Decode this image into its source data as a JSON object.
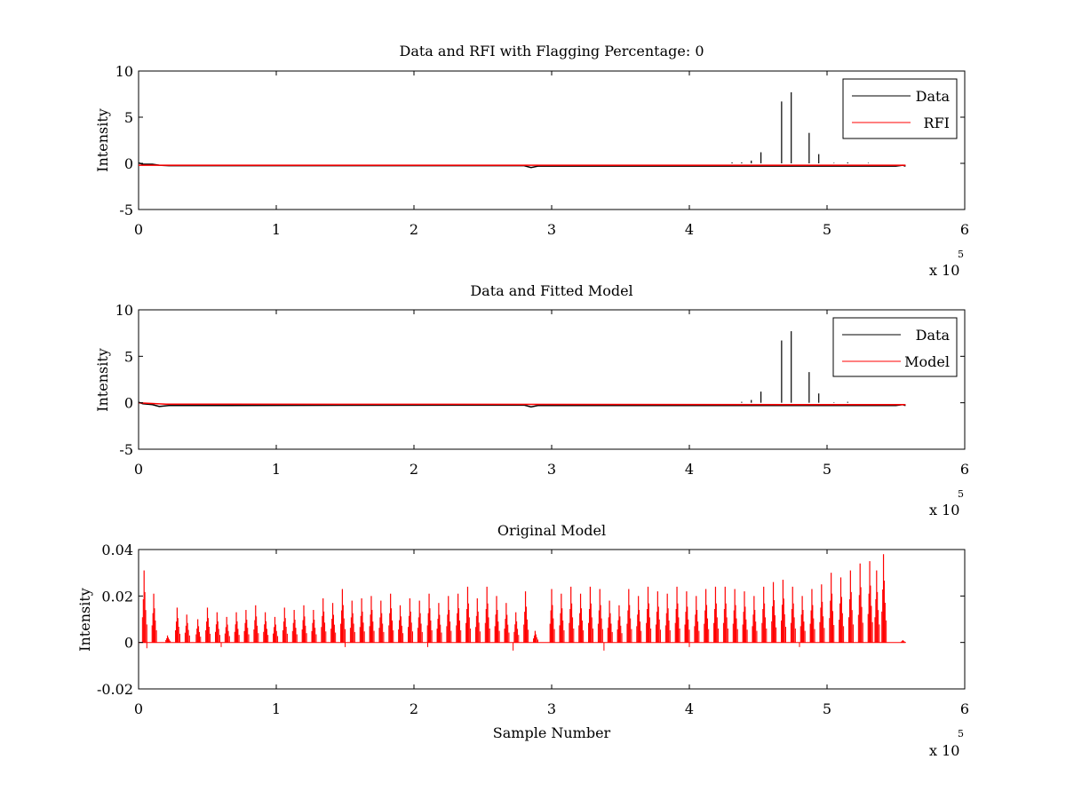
{
  "chart_data": [
    {
      "type": "line",
      "title": "Data and RFI with Flagging Percentage: 0",
      "xlabel": "",
      "ylabel": "Intensity",
      "xlim": [
        0,
        6
      ],
      "ylim": [
        -5,
        10
      ],
      "x_ticks": [
        "0",
        "1",
        "2",
        "3",
        "4",
        "5",
        "6"
      ],
      "y_ticks": [
        "-5",
        "0",
        "5",
        "10"
      ],
      "x_multiplier": "x 10",
      "x_multiplier_exp": "5",
      "legend": {
        "position": "top-right",
        "entries": [
          {
            "label": "Data",
            "color": "#000000"
          },
          {
            "label": "RFI",
            "color": "#ff0000"
          }
        ]
      },
      "series": [
        {
          "name": "Data",
          "color": "#000000",
          "baseline": [
            [
              0.0,
              0.05
            ],
            [
              0.03,
              -0.1
            ],
            [
              0.1,
              -0.1
            ],
            [
              0.15,
              -0.2
            ],
            [
              0.22,
              -0.25
            ],
            [
              2.8,
              -0.25
            ],
            [
              2.85,
              -0.45
            ],
            [
              2.9,
              -0.3
            ],
            [
              5.5,
              -0.3
            ],
            [
              5.55,
              -0.2
            ],
            [
              5.57,
              -0.3
            ]
          ],
          "spikes": [
            [
              4.52,
              1.2
            ],
            [
              4.67,
              6.7
            ],
            [
              4.74,
              7.7
            ],
            [
              4.87,
              3.3
            ],
            [
              4.94,
              1.0
            ],
            [
              4.45,
              0.3
            ],
            [
              4.38,
              0.1
            ],
            [
              4.31,
              0.1
            ],
            [
              5.05,
              0.05
            ],
            [
              5.15,
              0.1
            ],
            [
              5.3,
              0.05
            ]
          ]
        },
        {
          "name": "RFI",
          "color": "#ff0000",
          "baseline": [
            [
              0.0,
              -0.2
            ],
            [
              5.57,
              -0.2
            ]
          ],
          "spikes": []
        }
      ]
    },
    {
      "type": "line",
      "title": "Data and Fitted Model",
      "xlabel": "",
      "ylabel": "Intensity",
      "xlim": [
        0,
        6
      ],
      "ylim": [
        -5,
        10
      ],
      "x_ticks": [
        "0",
        "1",
        "2",
        "3",
        "4",
        "5",
        "6"
      ],
      "y_ticks": [
        "-5",
        "0",
        "5",
        "10"
      ],
      "x_multiplier": "x 10",
      "x_multiplier_exp": "5",
      "legend": {
        "position": "top-right",
        "entries": [
          {
            "label": "Data",
            "color": "#000000"
          },
          {
            "label": "Model",
            "color": "#ff0000"
          }
        ]
      },
      "series": [
        {
          "name": "Data",
          "color": "#000000",
          "baseline": [
            [
              0.0,
              0.05
            ],
            [
              0.03,
              -0.1
            ],
            [
              0.1,
              -0.2
            ],
            [
              0.15,
              -0.4
            ],
            [
              0.22,
              -0.3
            ],
            [
              2.8,
              -0.25
            ],
            [
              2.85,
              -0.45
            ],
            [
              2.9,
              -0.3
            ],
            [
              5.5,
              -0.3
            ],
            [
              5.55,
              -0.2
            ],
            [
              5.57,
              -0.3
            ]
          ],
          "spikes": [
            [
              4.52,
              1.2
            ],
            [
              4.67,
              6.7
            ],
            [
              4.74,
              7.7
            ],
            [
              4.87,
              3.3
            ],
            [
              4.94,
              1.0
            ],
            [
              4.45,
              0.3
            ],
            [
              4.38,
              0.1
            ],
            [
              5.05,
              0.05
            ],
            [
              5.15,
              0.1
            ]
          ]
        },
        {
          "name": "Model",
          "color": "#ff0000",
          "baseline": [
            [
              0.0,
              0.0
            ],
            [
              0.2,
              -0.15
            ],
            [
              5.57,
              -0.2
            ]
          ],
          "spikes": []
        }
      ]
    },
    {
      "type": "line",
      "title": "Original Model",
      "xlabel": "Sample Number",
      "ylabel": "Intensity",
      "xlim": [
        0,
        6
      ],
      "ylim": [
        -0.02,
        0.04
      ],
      "x_ticks": [
        "0",
        "1",
        "2",
        "3",
        "4",
        "5",
        "6"
      ],
      "y_ticks": [
        "-0.02",
        "0",
        "0.02",
        "0.04"
      ],
      "x_multiplier": "x 10",
      "x_multiplier_exp": "5",
      "series": [
        {
          "name": "Model",
          "color": "#ff0000",
          "baseline": [
            [
              0.0,
              0.0
            ],
            [
              5.57,
              0.0
            ]
          ],
          "spikes": [
            [
              0.04,
              0.031
            ],
            [
              0.11,
              0.021
            ],
            [
              0.21,
              0.003
            ],
            [
              0.28,
              0.015
            ],
            [
              0.35,
              0.012
            ],
            [
              0.43,
              0.01
            ],
            [
              0.5,
              0.015
            ],
            [
              0.57,
              0.013
            ],
            [
              0.64,
              0.011
            ],
            [
              0.71,
              0.013
            ],
            [
              0.78,
              0.014
            ],
            [
              0.85,
              0.016
            ],
            [
              0.92,
              0.013
            ],
            [
              0.99,
              0.011
            ],
            [
              1.06,
              0.015
            ],
            [
              1.13,
              0.014
            ],
            [
              1.2,
              0.016
            ],
            [
              1.27,
              0.014
            ],
            [
              1.34,
              0.019
            ],
            [
              1.41,
              0.017
            ],
            [
              1.48,
              0.023
            ],
            [
              1.55,
              0.018
            ],
            [
              1.62,
              0.019
            ],
            [
              1.69,
              0.02
            ],
            [
              1.76,
              0.018
            ],
            [
              1.83,
              0.021
            ],
            [
              1.9,
              0.016
            ],
            [
              1.97,
              0.019
            ],
            [
              2.04,
              0.018
            ],
            [
              2.11,
              0.021
            ],
            [
              2.18,
              0.017
            ],
            [
              2.25,
              0.02
            ],
            [
              2.32,
              0.021
            ],
            [
              2.39,
              0.024
            ],
            [
              2.46,
              0.019
            ],
            [
              2.53,
              0.024
            ],
            [
              2.6,
              0.02
            ],
            [
              2.67,
              0.017
            ],
            [
              2.74,
              0.013
            ],
            [
              2.81,
              0.022
            ],
            [
              2.88,
              0.005
            ],
            [
              3.0,
              0.023
            ],
            [
              3.07,
              0.021
            ],
            [
              3.14,
              0.024
            ],
            [
              3.21,
              0.021
            ],
            [
              3.28,
              0.024
            ],
            [
              3.35,
              0.023
            ],
            [
              3.42,
              0.018
            ],
            [
              3.49,
              0.016
            ],
            [
              3.56,
              0.023
            ],
            [
              3.63,
              0.02
            ],
            [
              3.7,
              0.024
            ],
            [
              3.77,
              0.022
            ],
            [
              3.84,
              0.021
            ],
            [
              3.91,
              0.024
            ],
            [
              3.98,
              0.022
            ],
            [
              4.05,
              0.02
            ],
            [
              4.12,
              0.023
            ],
            [
              4.19,
              0.024
            ],
            [
              4.26,
              0.024
            ],
            [
              4.33,
              0.023
            ],
            [
              4.4,
              0.022
            ],
            [
              4.47,
              0.02
            ],
            [
              4.54,
              0.024
            ],
            [
              4.61,
              0.026
            ],
            [
              4.68,
              0.027
            ],
            [
              4.75,
              0.024
            ],
            [
              4.82,
              0.02
            ],
            [
              4.89,
              0.023
            ],
            [
              4.96,
              0.025
            ],
            [
              5.03,
              0.03
            ],
            [
              5.1,
              0.028
            ],
            [
              5.17,
              0.031
            ],
            [
              5.24,
              0.034
            ],
            [
              5.31,
              0.035
            ],
            [
              5.36,
              0.031
            ],
            [
              5.41,
              0.038
            ],
            [
              5.55,
              0.001
            ]
          ],
          "dips": [
            [
              0.06,
              -0.0025
            ],
            [
              0.6,
              -0.002
            ],
            [
              1.5,
              -0.002
            ],
            [
              2.1,
              -0.002
            ],
            [
              2.72,
              -0.0035
            ],
            [
              3.38,
              -0.0035
            ],
            [
              4.0,
              -0.002
            ],
            [
              4.8,
              -0.002
            ]
          ]
        }
      ]
    }
  ]
}
